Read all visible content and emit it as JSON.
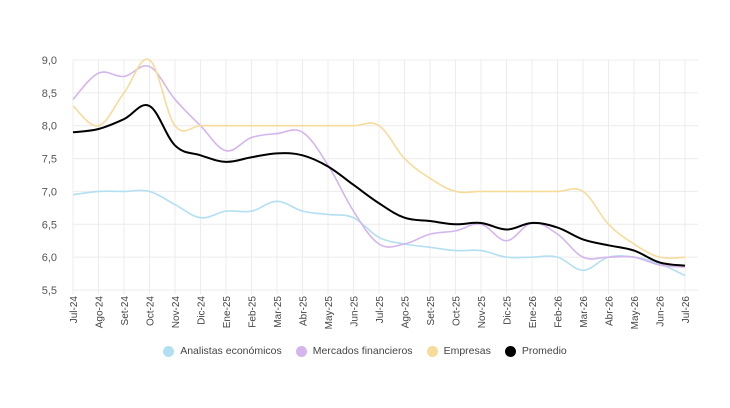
{
  "chart_data": {
    "type": "line",
    "title": "",
    "xlabel": "",
    "ylabel": "",
    "ylim": [
      5.5,
      9.0
    ],
    "yticks": [
      "9,0",
      "8,5",
      "8,0",
      "7,5",
      "7,0",
      "6,5",
      "6,0",
      "5,5"
    ],
    "ytick_values": [
      9.0,
      8.5,
      8.0,
      7.5,
      7.0,
      6.5,
      6.0,
      5.5
    ],
    "grid": true,
    "legend_position": "bottom",
    "categories": [
      "Jul-24",
      "Ago-24",
      "Set-24",
      "Oct-24",
      "Nov-24",
      "Dic-24",
      "Ene-25",
      "Feb-25",
      "Mar-25",
      "Abr-25",
      "May-25",
      "Jun-25",
      "Jul-25",
      "Ago-25",
      "Set-25",
      "Oct-25",
      "Nov-25",
      "Dic-25",
      "Ene-26",
      "Feb-26",
      "Mar-26",
      "Abr-26",
      "May-26",
      "Jun-26",
      "Jul-26"
    ],
    "series": [
      {
        "name": "Analistas económicos",
        "color": "#b3dff2",
        "values": [
          6.95,
          7.0,
          7.0,
          7.0,
          6.8,
          6.6,
          6.7,
          6.7,
          6.85,
          6.7,
          6.65,
          6.6,
          6.3,
          6.2,
          6.15,
          6.1,
          6.1,
          6.0,
          6.0,
          6.0,
          5.8,
          6.0,
          6.0,
          5.9,
          5.72
        ]
      },
      {
        "name": "Mercados financieros",
        "color": "#d4b5ee",
        "values": [
          8.4,
          8.8,
          8.75,
          8.9,
          8.4,
          8.0,
          7.62,
          7.82,
          7.88,
          7.9,
          7.4,
          6.7,
          6.2,
          6.2,
          6.35,
          6.4,
          6.5,
          6.25,
          6.52,
          6.35,
          6.0,
          6.0,
          6.0,
          5.88,
          5.85
        ]
      },
      {
        "name": "Empresas",
        "color": "#f6dc9a",
        "values": [
          8.3,
          8.0,
          8.5,
          9.0,
          8.0,
          8.0,
          8.0,
          8.0,
          8.0,
          8.0,
          8.0,
          8.0,
          8.0,
          7.5,
          7.2,
          7.0,
          7.0,
          7.0,
          7.0,
          7.0,
          7.0,
          6.5,
          6.2,
          6.0,
          6.0
        ]
      },
      {
        "name": "Promedio",
        "color": "#000000",
        "values": [
          7.9,
          7.95,
          8.1,
          8.3,
          7.7,
          7.55,
          7.45,
          7.52,
          7.58,
          7.55,
          7.38,
          7.1,
          6.82,
          6.6,
          6.55,
          6.5,
          6.52,
          6.42,
          6.52,
          6.45,
          6.27,
          6.18,
          6.1,
          5.92,
          5.87
        ]
      }
    ]
  }
}
